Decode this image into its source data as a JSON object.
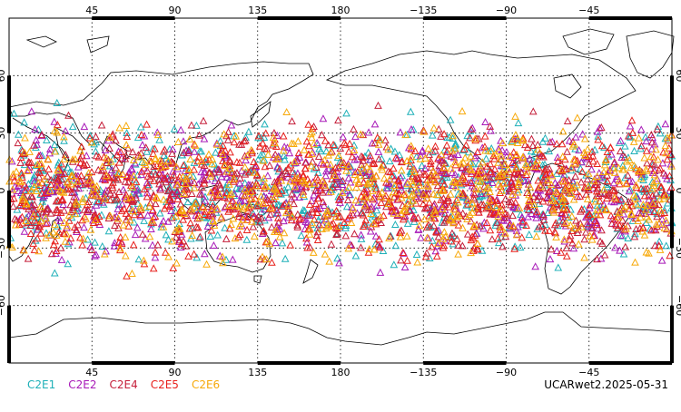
{
  "map": {
    "projection": "cylindrical equidistant",
    "center_longitude": 180,
    "lon_range": [
      0,
      360
    ],
    "lat_range": [
      -90,
      90
    ],
    "top_lon_labels": [
      "45",
      "90",
      "135",
      "180",
      "−135",
      "−90",
      "−45"
    ],
    "bottom_lon_labels": [
      "45",
      "90",
      "135",
      "180",
      "−135",
      "−90",
      "−45"
    ],
    "lon_label_values": [
      45,
      90,
      135,
      180,
      225,
      270,
      315
    ],
    "lat_labels": [
      "60",
      "30",
      "0",
      "−30",
      "−60"
    ],
    "lat_label_values": [
      60,
      30,
      0,
      -30,
      -60
    ],
    "grid": "dotted"
  },
  "series": [
    {
      "name": "C2E1",
      "color": "#1fb0b8",
      "seed": 11
    },
    {
      "name": "C2E2",
      "color": "#a81ab8",
      "seed": 23
    },
    {
      "name": "C2E4",
      "color": "#c51f3a",
      "seed": 37
    },
    {
      "name": "C2E5",
      "color": "#e8201c",
      "seed": 53
    },
    {
      "name": "C2E6",
      "color": "#f7a90a",
      "seed": 71
    }
  ],
  "marker": "triangle",
  "occultation_lat_band": [
    -48,
    48
  ],
  "stamp": "UCARwet2.2025-05-31"
}
